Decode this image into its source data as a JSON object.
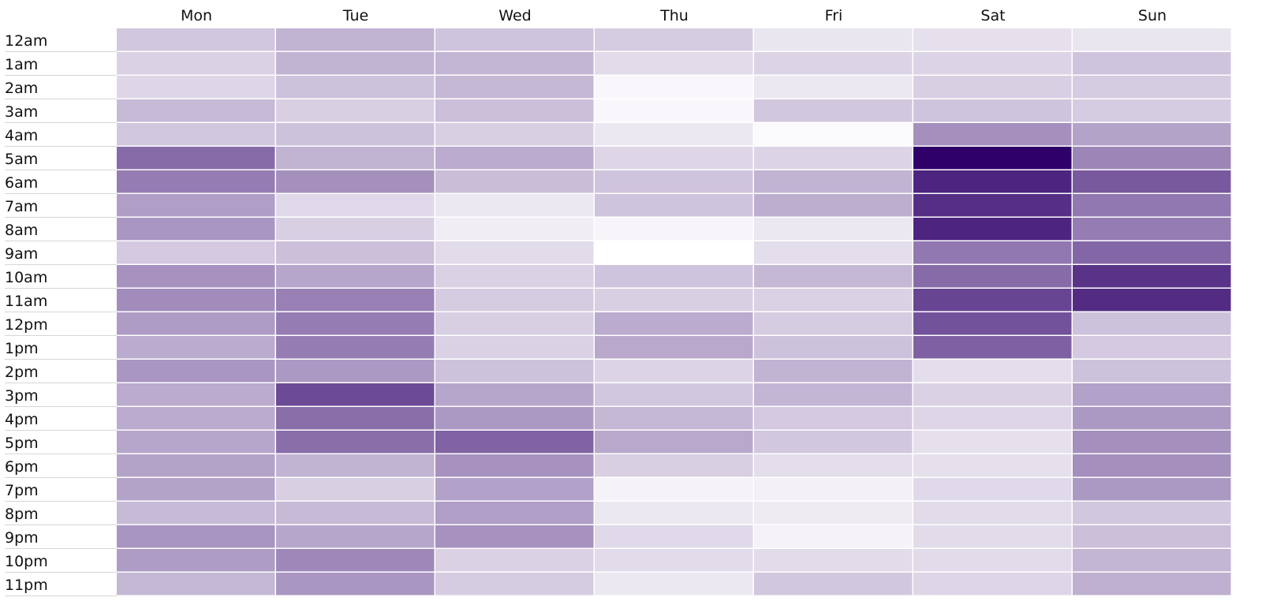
{
  "chart_data": {
    "type": "heatmap",
    "title": "",
    "xlabel": "",
    "ylabel": "",
    "legend": false,
    "grid": false,
    "columns": [
      "Mon",
      "Tue",
      "Wed",
      "Thu",
      "Fri",
      "Sat",
      "Sun"
    ],
    "rows": [
      "12am",
      "1am",
      "2am",
      "3am",
      "4am",
      "5am",
      "6am",
      "7am",
      "8am",
      "9am",
      "10am",
      "11am",
      "12pm",
      "1pm",
      "2pm",
      "3pm",
      "4pm",
      "5pm",
      "6pm",
      "7pm",
      "8pm",
      "9pm",
      "10pm",
      "11pm"
    ],
    "value_range": [
      0,
      100
    ],
    "color_low": "#ffffff",
    "color_high": "#30006a",
    "values": [
      [
        22,
        30,
        23,
        20,
        10,
        12,
        10
      ],
      [
        18,
        30,
        29,
        14,
        17,
        17,
        23
      ],
      [
        16,
        24,
        28,
        3,
        9,
        19,
        20
      ],
      [
        27,
        19,
        25,
        3,
        22,
        23,
        20
      ],
      [
        22,
        24,
        19,
        9,
        2,
        44,
        36
      ],
      [
        58,
        30,
        33,
        16,
        17,
        100,
        48
      ],
      [
        51,
        44,
        26,
        23,
        30,
        86,
        65
      ],
      [
        38,
        15,
        9,
        23,
        32,
        82,
        53
      ],
      [
        41,
        19,
        7,
        4,
        9,
        86,
        51
      ],
      [
        21,
        25,
        14,
        0,
        13,
        53,
        60
      ],
      [
        43,
        35,
        18,
        23,
        28,
        58,
        80
      ],
      [
        45,
        50,
        20,
        19,
        18,
        73,
        83
      ],
      [
        39,
        51,
        19,
        33,
        20,
        68,
        24
      ],
      [
        33,
        51,
        18,
        34,
        24,
        62,
        21
      ],
      [
        41,
        40,
        24,
        17,
        30,
        13,
        24
      ],
      [
        33,
        71,
        35,
        22,
        29,
        18,
        37
      ],
      [
        33,
        57,
        40,
        28,
        21,
        16,
        40
      ],
      [
        35,
        57,
        61,
        34,
        22,
        12,
        44
      ],
      [
        36,
        30,
        43,
        19,
        13,
        12,
        44
      ],
      [
        36,
        19,
        37,
        5,
        6,
        15,
        40
      ],
      [
        27,
        27,
        38,
        9,
        8,
        14,
        22
      ],
      [
        42,
        35,
        43,
        15,
        5,
        14,
        25
      ],
      [
        39,
        47,
        18,
        14,
        14,
        14,
        29
      ],
      [
        28,
        41,
        20,
        9,
        22,
        16,
        31
      ]
    ]
  }
}
